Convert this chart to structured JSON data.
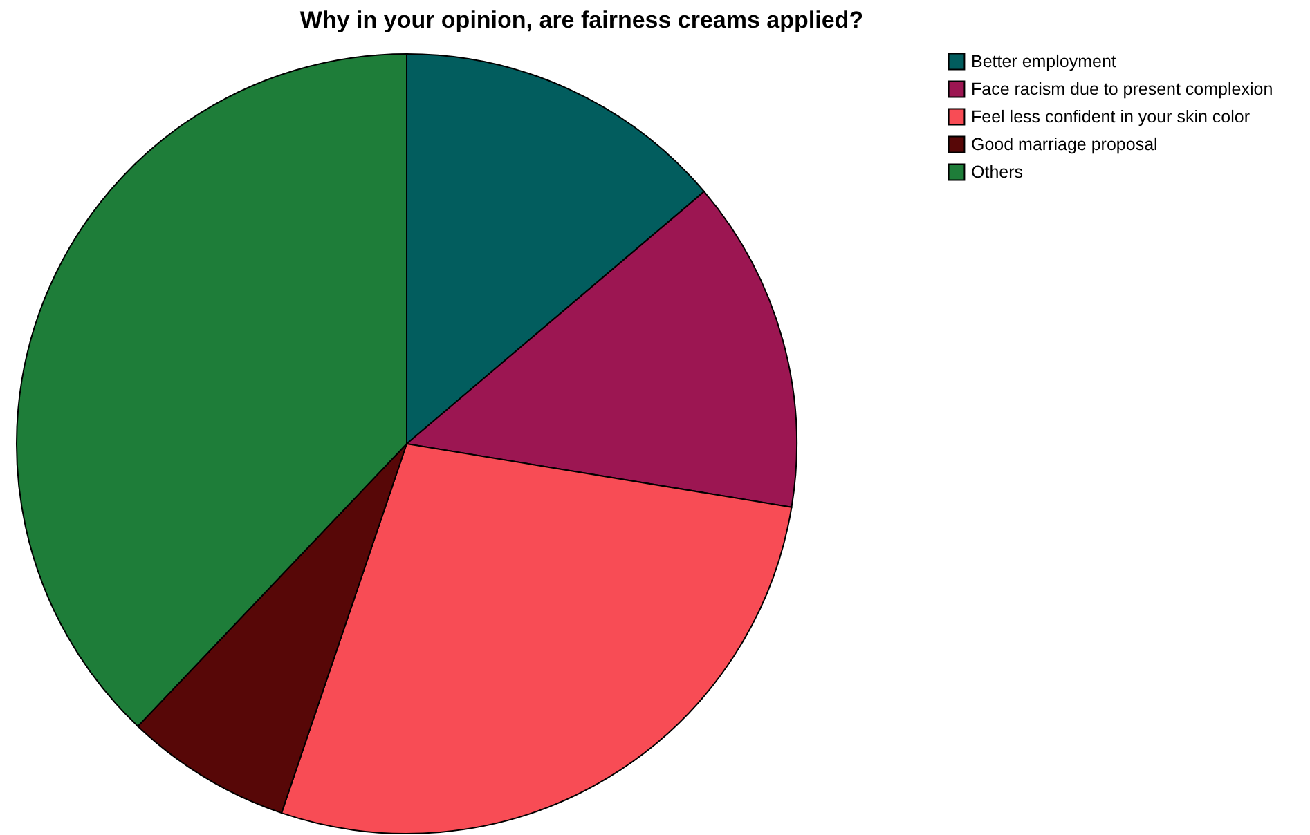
{
  "chart_data": {
    "type": "pie",
    "title": "Why in your opinion, are fairness creams applied?",
    "categories": [
      "Better employment",
      "Face racism due to present complexion",
      "Feel less confident in your skin color",
      "Good marriage proposal",
      "Others"
    ],
    "values": [
      13.8,
      13.8,
      27.6,
      6.9,
      37.9
    ],
    "colors": [
      "#025d5e",
      "#9c1652",
      "#f84c55",
      "#570707",
      "#1e7d39"
    ],
    "legend": "top right"
  }
}
